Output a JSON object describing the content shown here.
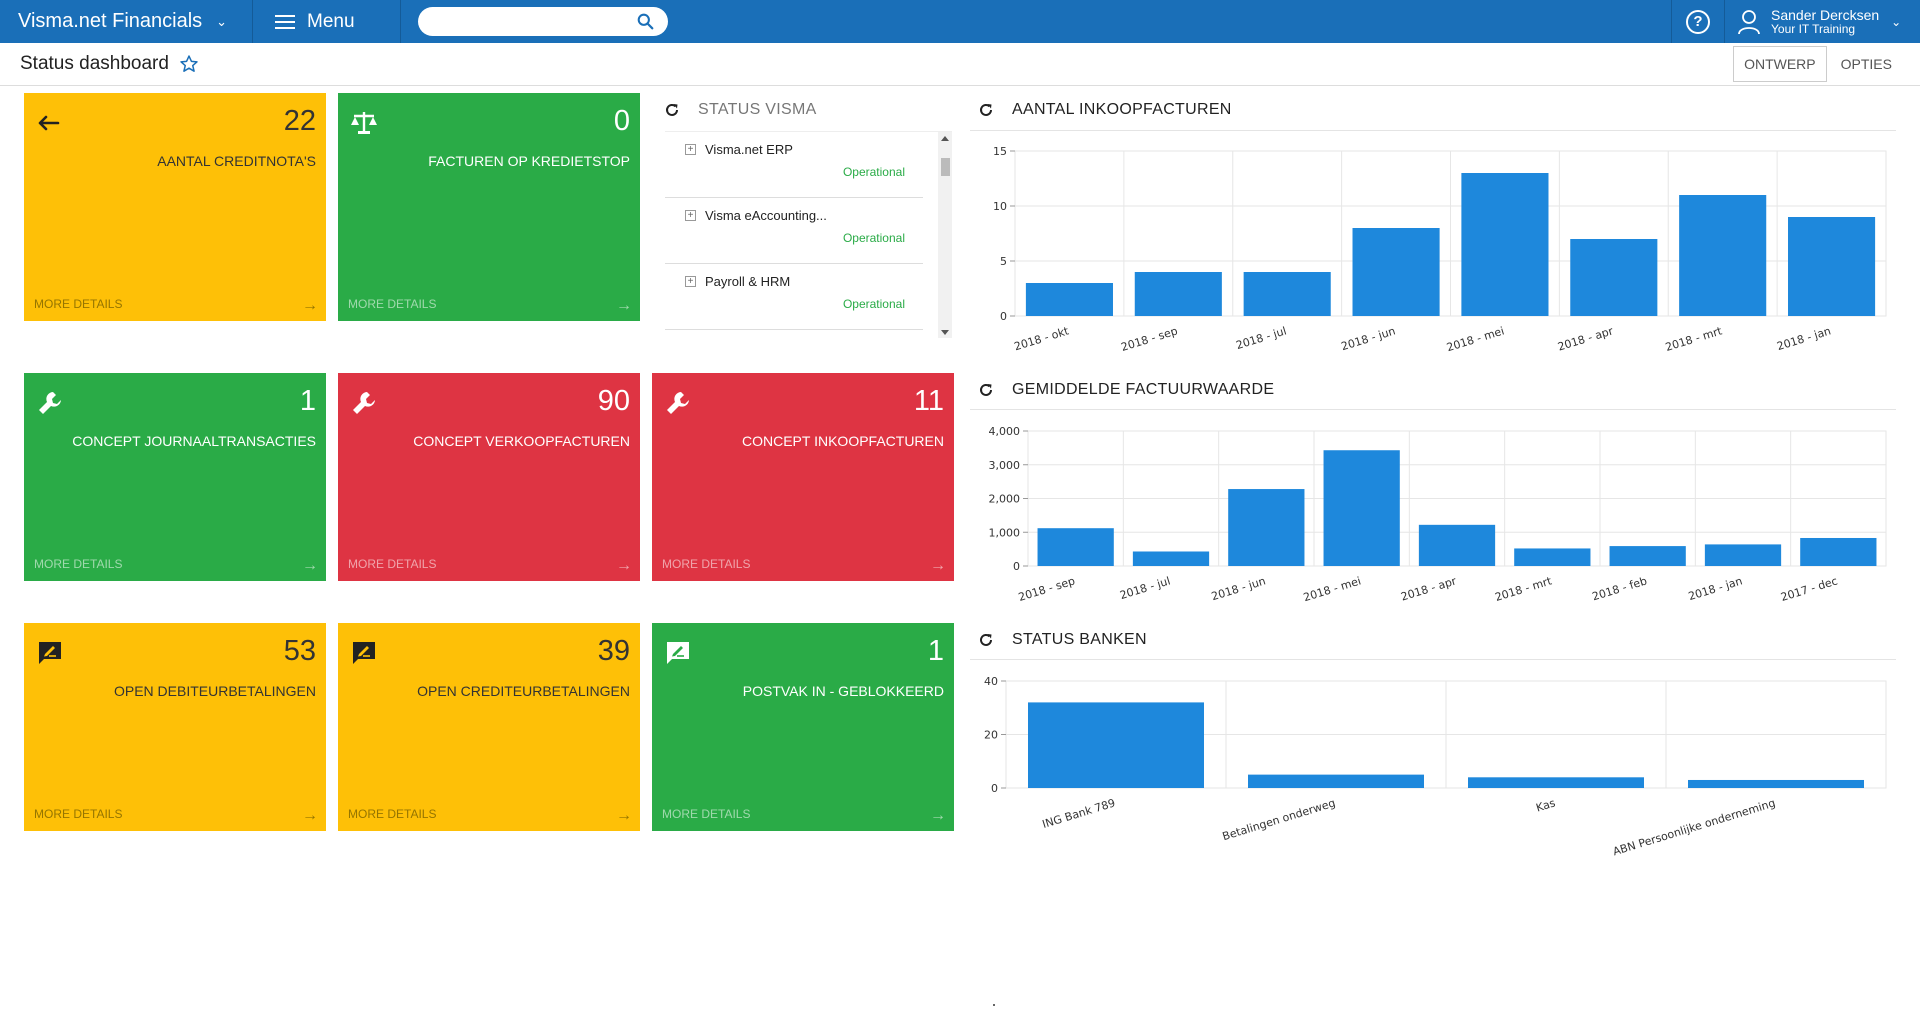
{
  "topbar": {
    "brand": "Visma.net Financials",
    "menu_label": "Menu",
    "search_placeholder": "",
    "user_name": "Sander Dercksen",
    "user_company": "Your IT Training"
  },
  "subheader": {
    "title": "Status dashboard",
    "ontwerp": "ONTWERP",
    "opties": "OPTIES"
  },
  "colors": {
    "topbar": "#1a6fb8",
    "yellow": "#fec007",
    "green": "#2aab47",
    "red": "#de3443",
    "bar": "#1e88dc"
  },
  "tiles": [
    {
      "number": "22",
      "label": "AANTAL CREDITNOTA'S",
      "icon": "back-arrow-icon",
      "more": "MORE DETAILS"
    },
    {
      "number": "0",
      "label": "FACTUREN OP KREDIETSTOP",
      "icon": "balance-scale-icon",
      "more": "MORE DETAILS"
    },
    {
      "number": "1",
      "label": "CONCEPT JOURNAALTRANSACTIES",
      "icon": "wrench-icon",
      "more": "MORE DETAILS"
    },
    {
      "number": "90",
      "label": "CONCEPT VERKOOPFACTUREN",
      "icon": "wrench-icon",
      "more": "MORE DETAILS"
    },
    {
      "number": "11",
      "label": "CONCEPT INKOOPFACTUREN",
      "icon": "wrench-icon",
      "more": "MORE DETAILS"
    },
    {
      "number": "53",
      "label": "OPEN DEBITEURBETALINGEN",
      "icon": "message-edit-icon",
      "more": "MORE DETAILS"
    },
    {
      "number": "39",
      "label": "OPEN CREDITEURBETALINGEN",
      "icon": "message-edit-icon",
      "more": "MORE DETAILS"
    },
    {
      "number": "1",
      "label": "POSTVAK IN - GEBLOKKEERD",
      "icon": "message-edit-icon",
      "more": "MORE DETAILS"
    }
  ],
  "status_visma": {
    "title": "STATUS VISMA",
    "items": [
      {
        "name": "Visma.net ERP",
        "state": "Operational"
      },
      {
        "name": "Visma eAccounting...",
        "state": "Operational"
      },
      {
        "name": "Payroll & HRM",
        "state": "Operational"
      }
    ]
  },
  "chart_data": [
    {
      "type": "bar",
      "title": "AANTAL INKOOPFACTUREN",
      "categories": [
        "2018 - okt",
        "2018 - sep",
        "2018 - jul",
        "2018 - jun",
        "2018 - mei",
        "2018 - apr",
        "2018 - mrt",
        "2018 - jan"
      ],
      "values": [
        3,
        4,
        4,
        8,
        13,
        7,
        11,
        9
      ],
      "ylim": [
        0,
        15
      ],
      "yticks": [
        "0",
        "5",
        "10",
        "15"
      ],
      "ytick_values": [
        0,
        5,
        10,
        15
      ],
      "grid": true
    },
    {
      "type": "bar",
      "title": "GEMIDDELDE FACTUURWAARDE",
      "categories": [
        "2018 - sep",
        "2018 - jul",
        "2018 - jun",
        "2018 - mei",
        "2018 - apr",
        "2018 - mrt",
        "2018 - feb",
        "2018 - jan",
        "2017 - dec"
      ],
      "values": [
        1120,
        430,
        2280,
        3430,
        1220,
        520,
        590,
        640,
        830
      ],
      "ylim": [
        0,
        4000
      ],
      "yticks": [
        "0",
        "1,000",
        "2,000",
        "3,000",
        "4,000"
      ],
      "ytick_values": [
        0,
        1000,
        2000,
        3000,
        4000
      ],
      "grid": true
    },
    {
      "type": "bar",
      "title": "STATUS BANKEN",
      "categories": [
        "ING Bank 789",
        "Betalingen onderweg",
        "Kas",
        "ABN Persoonlijke onderneming"
      ],
      "values": [
        32,
        5,
        4,
        3
      ],
      "ylim": [
        0,
        40
      ],
      "yticks": [
        "0",
        "20",
        "40"
      ],
      "ytick_values": [
        0,
        20,
        40
      ],
      "grid": true
    }
  ]
}
